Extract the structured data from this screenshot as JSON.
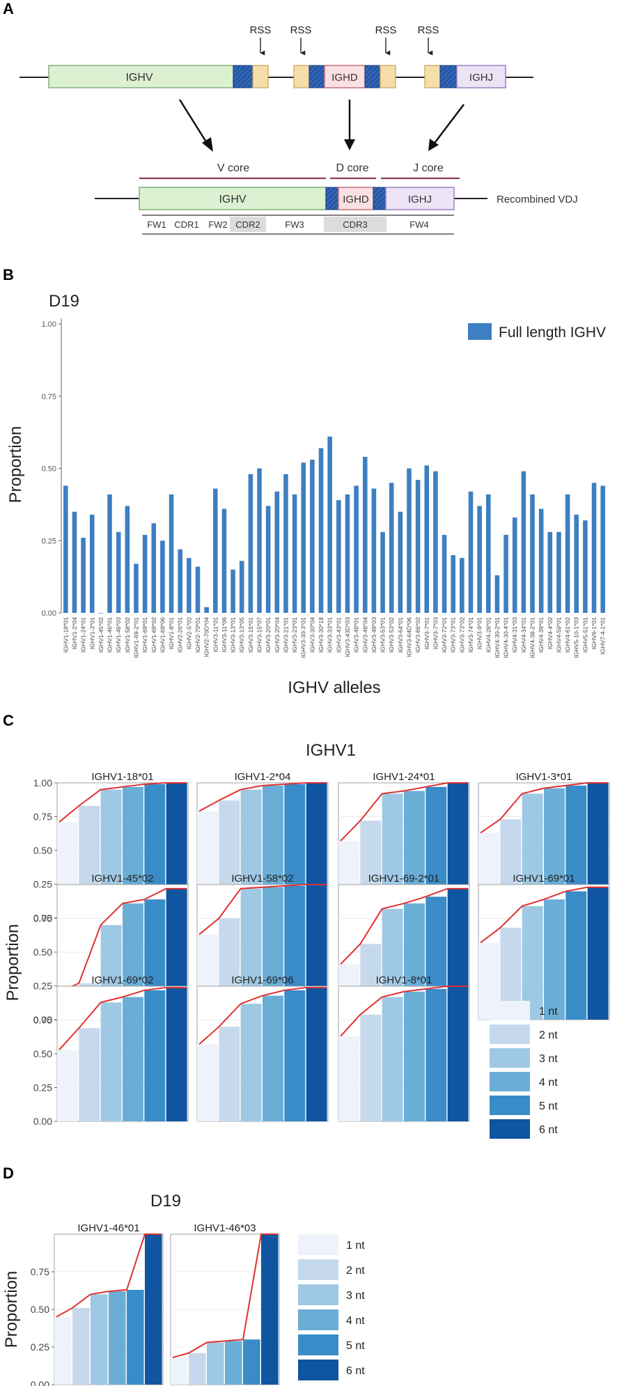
{
  "panels": {
    "A": {
      "letter": "A",
      "rss_label": "RSS",
      "germline": {
        "v": "IGHV",
        "d": "IGHD",
        "j": "IGHJ"
      },
      "cores": {
        "v": "V core",
        "d": "D core",
        "j": "J core"
      },
      "recombined": {
        "v": "IGHV",
        "d": "IGHD",
        "j": "IGHJ",
        "label": "Recombined VDJ"
      },
      "regions": [
        "FW1",
        "CDR1",
        "FW2",
        "CDR2",
        "FW3",
        "CDR3",
        "FW4"
      ]
    },
    "B": {
      "letter": "B"
    },
    "C": {
      "letter": "C"
    },
    "D": {
      "letter": "D"
    }
  },
  "colors": {
    "bar_blue": "#3d7fc1",
    "v_fill": "#dcf0d2",
    "v_stroke": "#7fb07a",
    "d_fill": "#fbe0e3",
    "d_stroke": "#c2707a",
    "j_fill": "#ece4f5",
    "j_stroke": "#9b80c4",
    "rss_fill": "#f5deaa",
    "rss_stroke": "#c8a45a",
    "hatch": "#2d5aa6",
    "core_line": "#8b3a55",
    "red_line": "#e03030",
    "nt": [
      "#eef2fa",
      "#c6d9ec",
      "#9ec8e3",
      "#6aaed6",
      "#3a8cc8",
      "#0f55a0"
    ]
  },
  "chart_data": [
    {
      "type": "bar",
      "panel": "B",
      "title": "D19",
      "xlabel": "IGHV alleles",
      "ylabel": "Proportion",
      "ylim": [
        0,
        1
      ],
      "yticks": [
        "0.00",
        "0.25",
        "0.50",
        "0.75",
        "1.00"
      ],
      "legend": "Full length IGHV",
      "legend_position": "top-right",
      "categories": [
        "IGHV1-18*01",
        "IGHV1-2*04",
        "IGHV1-24*01",
        "IGHV1-3*01",
        "IGHV1-45*02",
        "IGHV1-46*01",
        "IGHV1-46*03",
        "IGHV1-58*02",
        "IGHV1-69-2*01",
        "IGHV1-69*01",
        "IGHV1-69*02",
        "IGHV1-69*06",
        "IGHV1-8*01",
        "IGHV2-26*01",
        "IGHV2-5*02",
        "IGHV2-70*01",
        "IGHV2-70D*04",
        "IGHV3-11*01",
        "IGHV3-11*06",
        "IGHV3-13*01",
        "IGHV3-13*05",
        "IGHV3-15*01",
        "IGHV3-15*07",
        "IGHV3-20*01",
        "IGHV3-20*04",
        "IGHV3-21*01",
        "IGHV3-23*01",
        "IGHV3-30-3*01",
        "IGHV3-30*04",
        "IGHV3-30*18",
        "IGHV3-33*01",
        "IGHV3-43*01",
        "IGHV3-43D*03",
        "IGHV3-48*01",
        "IGHV3-48*04",
        "IGHV3-49*03",
        "IGHV3-53*01",
        "IGHV3-53*02",
        "IGHV3-64*01",
        "IGHV3-64D*06",
        "IGHV3-66*02",
        "IGHV3-7*01",
        "IGHV3-7*03",
        "IGHV3-72*01",
        "IGHV3-73*01",
        "IGHV3-73*02",
        "IGHV3-74*01",
        "IGHV3-9*01",
        "IGHV4-28*01",
        "IGHV4-30-2*01",
        "IGHV4-30-4*01",
        "IGHV4-31*03",
        "IGHV4-34*01",
        "IGHV4-38-2*01",
        "IGHV4-39*01",
        "IGHV4-4*02",
        "IGHV4-59*01",
        "IGHV4-61*02",
        "IGHV5-10-1*03",
        "IGHV5-51*01",
        "IGHV6-1*01",
        "IGHV7-4-1*01"
      ],
      "values": [
        0.44,
        0.35,
        0.26,
        0.34,
        0.0,
        0.41,
        0.28,
        0.37,
        0.17,
        0.27,
        0.31,
        0.25,
        0.41,
        0.22,
        0.19,
        0.16,
        0.02,
        0.43,
        0.36,
        0.15,
        0.18,
        0.48,
        0.5,
        0.37,
        0.42,
        0.48,
        0.41,
        0.52,
        0.53,
        0.57,
        0.61,
        0.39,
        0.41,
        0.44,
        0.54,
        0.43,
        0.28,
        0.45,
        0.35,
        0.5,
        0.46,
        0.51,
        0.49,
        0.27,
        0.2,
        0.19,
        0.42,
        0.37,
        0.41,
        0.13,
        0.27,
        0.33,
        0.49,
        0.41,
        0.36,
        0.28,
        0.28,
        0.41,
        0.34,
        0.32,
        0.45,
        0.44
      ]
    },
    {
      "type": "bar",
      "panel": "C",
      "title": "IGHV1",
      "ylabel": "Proportion",
      "ylim": [
        0,
        1
      ],
      "yticks": [
        "0.00",
        "0.25",
        "0.50",
        "0.75",
        "1.00"
      ],
      "legend": [
        "1 nt",
        "2 nt",
        "3 nt",
        "4 nt",
        "5 nt",
        "6 nt"
      ],
      "legend_position": "bottom-right",
      "facets": [
        {
          "title": "IGHV1-18*01",
          "values": [
            0.71,
            0.83,
            0.95,
            0.97,
            0.99,
            1.0
          ]
        },
        {
          "title": "IGHV1-2*04",
          "values": [
            0.79,
            0.87,
            0.95,
            0.98,
            0.99,
            1.0
          ]
        },
        {
          "title": "IGHV1-24*01",
          "values": [
            0.57,
            0.72,
            0.92,
            0.94,
            0.97,
            1.0
          ]
        },
        {
          "title": "IGHV1-3*01",
          "values": [
            0.63,
            0.73,
            0.92,
            0.96,
            0.98,
            1.0
          ]
        },
        {
          "title": "IGHV1-45*02",
          "values": [
            0.2,
            0.27,
            0.7,
            0.86,
            0.89,
            0.97
          ]
        },
        {
          "title": "IGHV1-58*02",
          "values": [
            0.63,
            0.75,
            0.97,
            0.98,
            0.99,
            1.0
          ]
        },
        {
          "title": "IGHV1-69-2*01",
          "values": [
            0.41,
            0.56,
            0.82,
            0.86,
            0.91,
            0.97
          ]
        },
        {
          "title": "IGHV1-69*01",
          "values": [
            0.57,
            0.68,
            0.84,
            0.89,
            0.95,
            0.98
          ]
        },
        {
          "title": "IGHV1-69*02",
          "values": [
            0.53,
            0.69,
            0.88,
            0.92,
            0.97,
            0.99
          ]
        },
        {
          "title": "IGHV1-69*06",
          "values": [
            0.57,
            0.7,
            0.87,
            0.93,
            0.97,
            0.99
          ]
        },
        {
          "title": "IGHV1-8*01",
          "values": [
            0.63,
            0.79,
            0.92,
            0.96,
            0.98,
            1.0
          ]
        }
      ]
    },
    {
      "type": "bar",
      "panel": "D",
      "title": "D19",
      "ylabel": "Proportion",
      "ylim": [
        0,
        1
      ],
      "yticks": [
        "0.00",
        "0.25",
        "0.50",
        "0.75"
      ],
      "legend": [
        "1 nt",
        "2 nt",
        "3 nt",
        "4 nt",
        "5 nt",
        "6 nt"
      ],
      "legend_position": "right",
      "facets": [
        {
          "title": "IGHV1-46*01",
          "values": [
            0.45,
            0.51,
            0.6,
            0.62,
            0.63,
            1.0
          ]
        },
        {
          "title": "IGHV1-46*03",
          "values": [
            0.18,
            0.21,
            0.28,
            0.29,
            0.3,
            1.0
          ]
        }
      ]
    }
  ]
}
